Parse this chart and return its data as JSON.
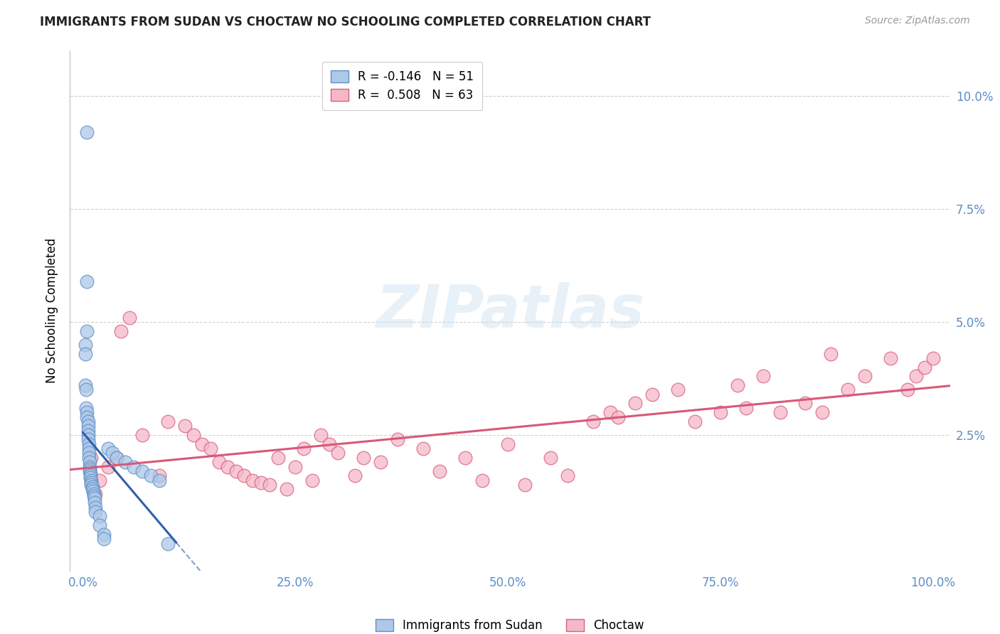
{
  "title": "IMMIGRANTS FROM SUDAN VS CHOCTAW NO SCHOOLING COMPLETED CORRELATION CHART",
  "source": "Source: ZipAtlas.com",
  "ylabel": "No Schooling Completed",
  "xlabel_ticks": [
    "0.0%",
    "25.0%",
    "50.0%",
    "75.0%",
    "100.0%"
  ],
  "xlabel_vals": [
    0,
    25,
    50,
    75,
    100
  ],
  "ylabel_ticks": [
    "2.5%",
    "5.0%",
    "7.5%",
    "10.0%"
  ],
  "ylabel_vals": [
    2.5,
    5.0,
    7.5,
    10.0
  ],
  "xlim": [
    -1.5,
    102
  ],
  "ylim": [
    -0.5,
    11.0
  ],
  "legend1_label": "R = -0.146   N = 51",
  "legend2_label": "R =  0.508   N = 63",
  "sudan_color": "#adc8e8",
  "sudan_edge": "#6090c8",
  "choctaw_color": "#f5b8c8",
  "choctaw_edge": "#d86080",
  "sudan_line_color": "#3060a8",
  "choctaw_line_color": "#d85878",
  "watermark_text": "ZIPatlas",
  "sudan_points_x": [
    0.5,
    0.5,
    0.5,
    0.3,
    0.3,
    0.3,
    0.4,
    0.4,
    0.5,
    0.5,
    0.6,
    0.6,
    0.6,
    0.6,
    0.6,
    0.7,
    0.7,
    0.7,
    0.7,
    0.8,
    0.8,
    0.8,
    0.8,
    0.9,
    0.9,
    0.9,
    1.0,
    1.0,
    1.0,
    1.1,
    1.1,
    1.2,
    1.3,
    1.3,
    1.4,
    1.4,
    1.5,
    1.5,
    2.0,
    2.0,
    2.5,
    2.5,
    3.0,
    3.5,
    4.0,
    5.0,
    6.0,
    7.0,
    8.0,
    9.0,
    10.0
  ],
  "sudan_points_y": [
    9.2,
    5.9,
    4.8,
    4.5,
    4.3,
    3.6,
    3.5,
    3.1,
    3.0,
    2.9,
    2.8,
    2.7,
    2.6,
    2.5,
    2.4,
    2.3,
    2.2,
    2.1,
    2.0,
    1.9,
    1.8,
    1.75,
    1.7,
    1.65,
    1.6,
    1.55,
    1.5,
    1.45,
    1.4,
    1.35,
    1.3,
    1.25,
    1.2,
    1.15,
    1.1,
    1.0,
    0.9,
    0.8,
    0.7,
    0.5,
    0.3,
    0.2,
    2.2,
    2.1,
    2.0,
    1.9,
    1.8,
    1.7,
    1.6,
    1.5,
    0.1
  ],
  "choctaw_points_x": [
    1.0,
    1.5,
    2.0,
    3.0,
    4.0,
    4.5,
    5.5,
    7.0,
    9.0,
    10.0,
    12.0,
    13.0,
    14.0,
    15.0,
    16.0,
    17.0,
    18.0,
    19.0,
    20.0,
    21.0,
    22.0,
    23.0,
    24.0,
    25.0,
    26.0,
    27.0,
    28.0,
    29.0,
    30.0,
    32.0,
    33.0,
    35.0,
    37.0,
    40.0,
    42.0,
    45.0,
    47.0,
    50.0,
    52.0,
    55.0,
    57.0,
    60.0,
    62.0,
    65.0,
    67.0,
    70.0,
    72.0,
    75.0,
    77.0,
    80.0,
    82.0,
    85.0,
    87.0,
    88.0,
    90.0,
    92.0,
    95.0,
    97.0,
    98.0,
    99.0,
    100.0,
    78.0,
    63.0
  ],
  "choctaw_points_y": [
    2.0,
    1.2,
    1.5,
    1.8,
    2.0,
    4.8,
    5.1,
    2.5,
    1.6,
    2.8,
    2.7,
    2.5,
    2.3,
    2.2,
    1.9,
    1.8,
    1.7,
    1.6,
    1.5,
    1.45,
    1.4,
    2.0,
    1.3,
    1.8,
    2.2,
    1.5,
    2.5,
    2.3,
    2.1,
    1.6,
    2.0,
    1.9,
    2.4,
    2.2,
    1.7,
    2.0,
    1.5,
    2.3,
    1.4,
    2.0,
    1.6,
    2.8,
    3.0,
    3.2,
    3.4,
    3.5,
    2.8,
    3.0,
    3.6,
    3.8,
    3.0,
    3.2,
    3.0,
    4.3,
    3.5,
    3.8,
    4.2,
    3.5,
    3.8,
    4.0,
    4.2,
    3.1,
    2.9
  ]
}
